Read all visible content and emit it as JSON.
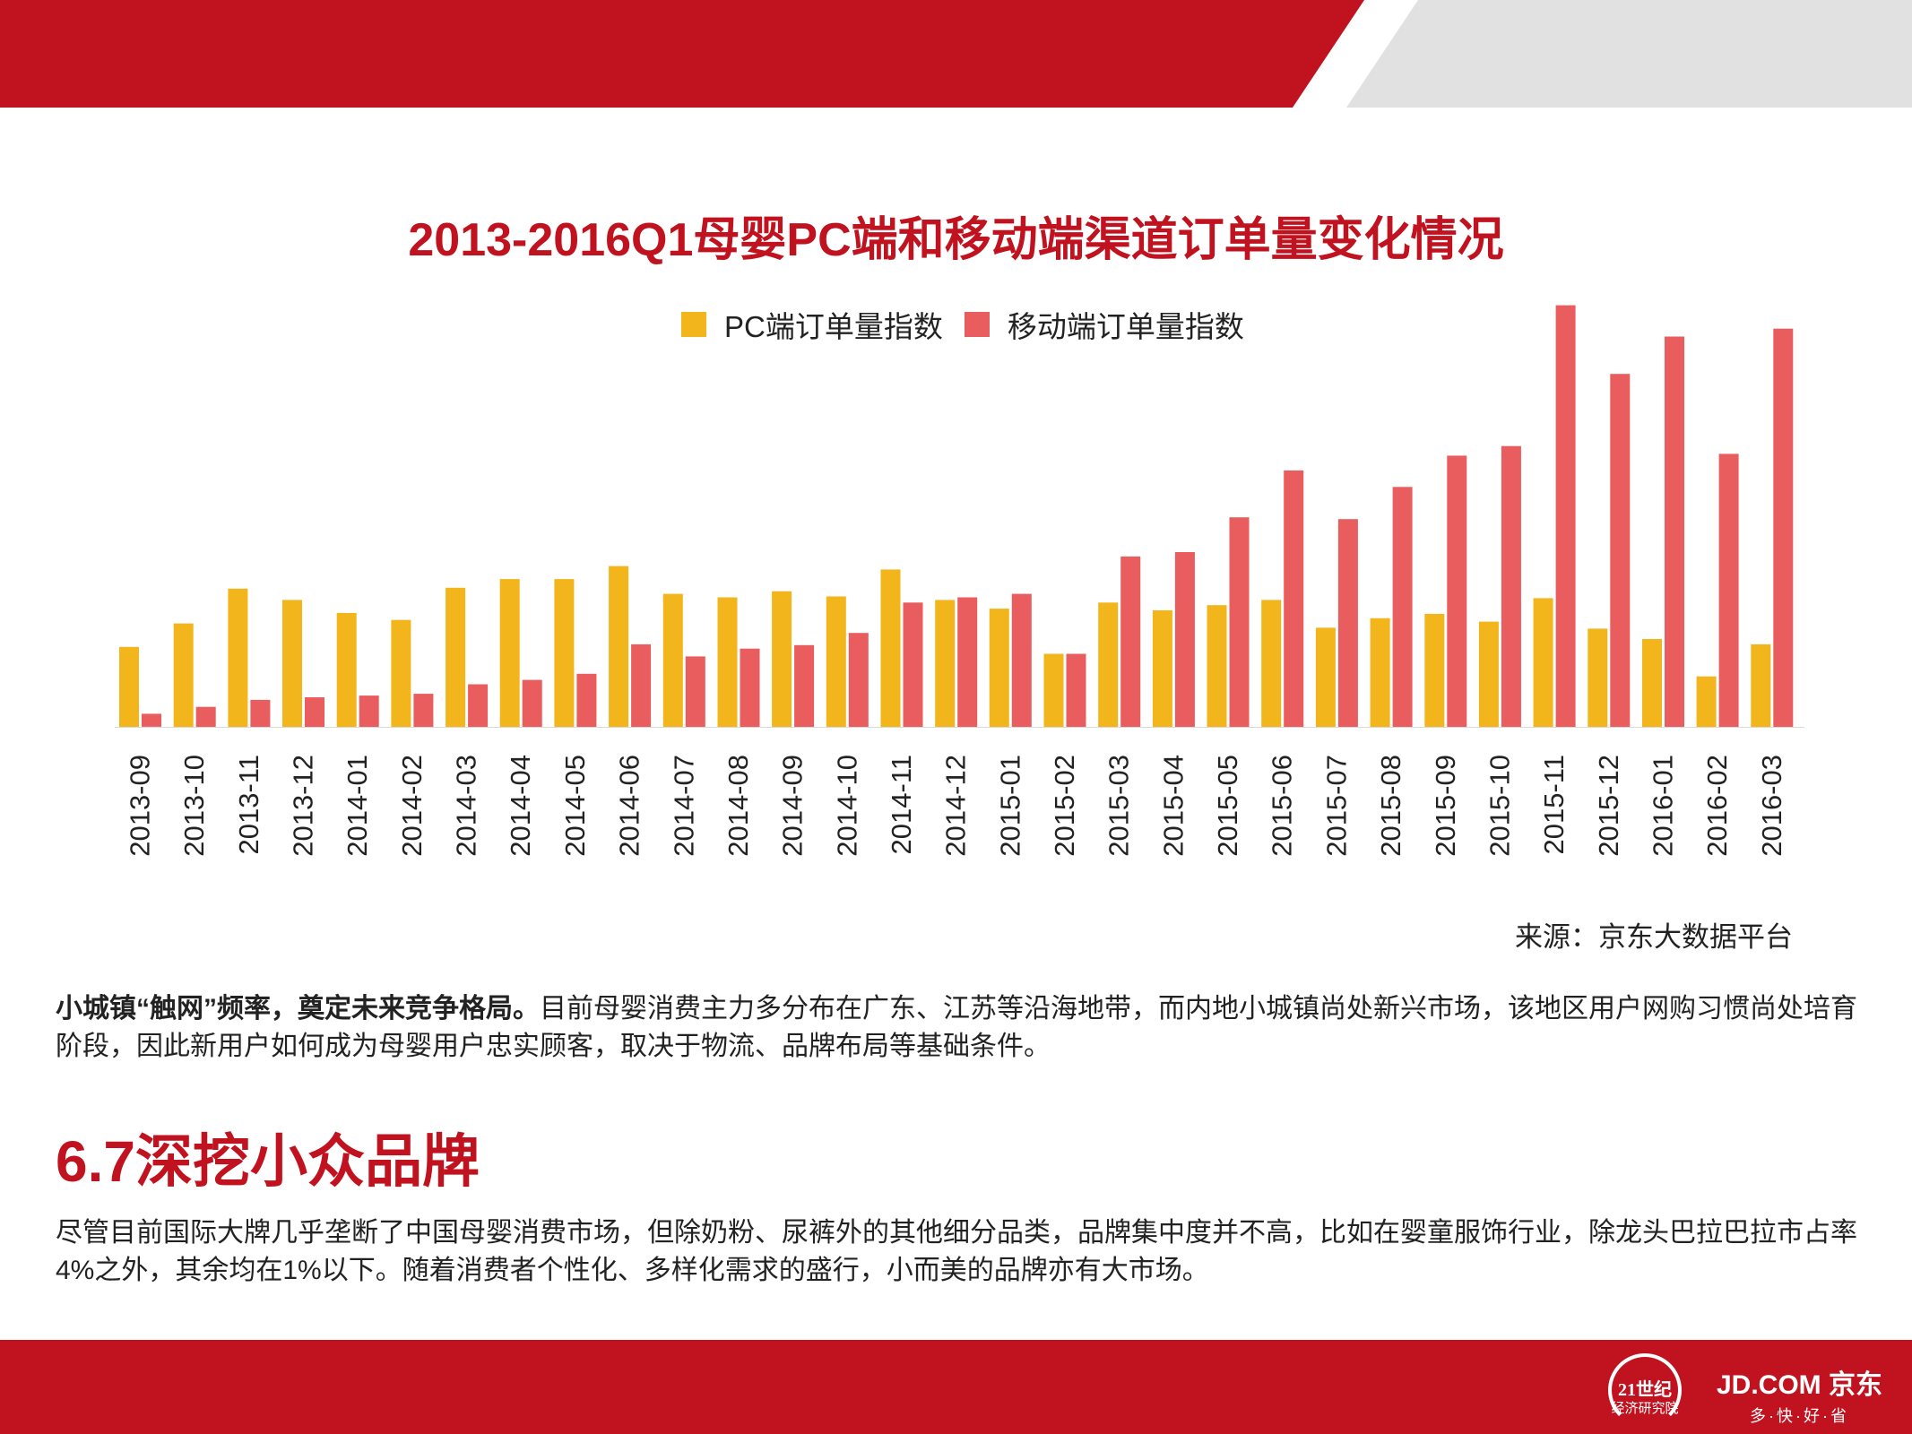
{
  "colors": {
    "brand_red": "#c1121f",
    "pc_series": "#f2b51b",
    "mobile_series": "#e95d5e",
    "grey_band": "#e1e1e1"
  },
  "chart_data": {
    "type": "bar",
    "title": "2013-2016Q1母婴PC端和移动端渠道订单量变化情况",
    "legend_position": "top-center",
    "grid": false,
    "categories": [
      "2013-09",
      "2013-10",
      "2013-11",
      "2013-12",
      "2014-01",
      "2014-02",
      "2014-03",
      "2014-04",
      "2014-05",
      "2014-06",
      "2014-07",
      "2014-08",
      "2014-09",
      "2014-10",
      "2014-11",
      "2014-12",
      "2015-01",
      "2015-02",
      "2015-03",
      "2015-04",
      "2015-05",
      "2015-06",
      "2015-07",
      "2015-08",
      "2015-09",
      "2015-10",
      "2015-11",
      "2015-12",
      "2016-01",
      "2016-02",
      "2016-03"
    ],
    "series": [
      {
        "name": "PC端订单量指数",
        "color": "#f2b51b",
        "values": [
          92,
          119,
          159,
          146,
          131,
          123,
          160,
          170,
          170,
          185,
          153,
          149,
          156,
          150,
          181,
          146,
          136,
          84,
          143,
          134,
          140,
          146,
          114,
          125,
          130,
          121,
          148,
          113,
          101,
          58,
          95
        ]
      },
      {
        "name": "移动端订单量指数",
        "color": "#e95d5e",
        "values": [
          15,
          23,
          31,
          34,
          36,
          38,
          49,
          54,
          61,
          95,
          81,
          90,
          94,
          108,
          143,
          149,
          153,
          84,
          196,
          201,
          241,
          295,
          239,
          276,
          312,
          323,
          485,
          406,
          449,
          314,
          458
        ]
      }
    ],
    "ylim": [
      0,
      500
    ]
  },
  "source": "来源：京东大数据平台",
  "paragraph1": {
    "lead": "小城镇“触网”频率，奠定未来竞争格局。",
    "body": "目前母婴消费主力多分布在广东、江苏等沿海地带，而内地小城镇尚处新兴市场，该地区用户网购习惯尚处培育阶段，因此新用户如何成为母婴用户忠实顾客，取决于物流、品牌布局等基础条件。"
  },
  "section_title": "6.7深挖小众品牌",
  "paragraph2": "尽管目前国际大牌几乎垄断了中国母婴消费市场，但除奶粉、尿裤外的其他细分品类，品牌集中度并不高，比如在婴童服饰行业，除龙头巴拉巴拉市占率4%之外，其余均在1%以下。随着消费者个性化、多样化需求的盛行，小而美的品牌亦有大市场。",
  "footer": {
    "logo_21_top": "21世纪",
    "logo_21_bottom": "经济研究院",
    "logo_jd_main": "JD.COM 京东",
    "logo_jd_sub": "多·快·好·省"
  }
}
